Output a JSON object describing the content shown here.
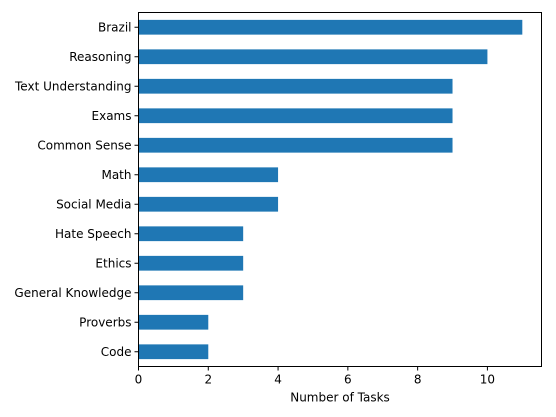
{
  "chart_data": {
    "type": "bar",
    "orientation": "horizontal",
    "categories": [
      "Brazil",
      "Reasoning",
      "Text Understanding",
      "Exams",
      "Common Sense",
      "Math",
      "Social Media",
      "Hate Speech",
      "Ethics",
      "General Knowledge",
      "Proverbs",
      "Code"
    ],
    "values": [
      11,
      10,
      9,
      9,
      9,
      4,
      4,
      3,
      3,
      3,
      2,
      2
    ],
    "xlabel": "Number of Tasks",
    "ylabel": "",
    "xlim": [
      0,
      11.55
    ],
    "xticks": [
      "0",
      "2",
      "4",
      "6",
      "8",
      "10"
    ],
    "grid": false,
    "bar_color": "#1f77b4"
  }
}
